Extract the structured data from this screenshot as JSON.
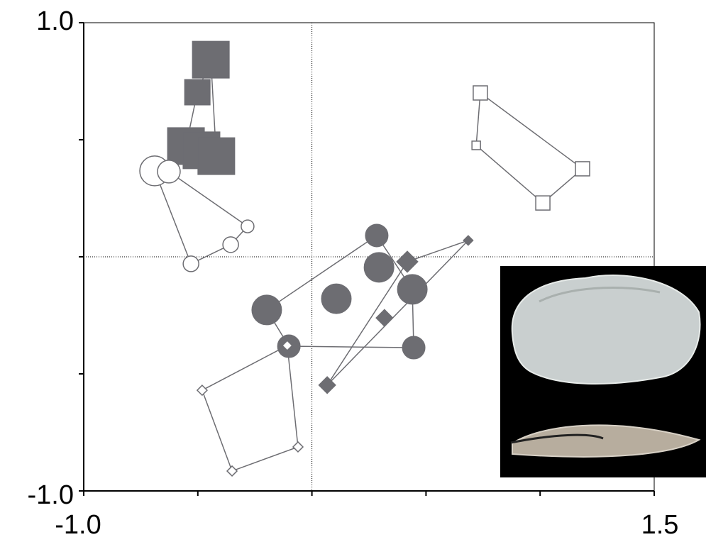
{
  "chart_data": {
    "type": "scatter",
    "xlim": [
      -1.0,
      1.5
    ],
    "ylim": [
      -1.0,
      1.0
    ],
    "xticks": [
      {
        "value": -1.0,
        "label": "-1.0"
      },
      {
        "value": 1.5,
        "label": "1.5"
      }
    ],
    "yticks": [
      {
        "value": -1.0,
        "label": "-1.0"
      },
      {
        "value": 1.0,
        "label": "1.0"
      }
    ],
    "xminorticks": [
      -0.5,
      0,
      0.5,
      1.0
    ],
    "yminorticks": [
      -0.5,
      0,
      0.5
    ],
    "reference_lines": {
      "x": 0,
      "y": 0
    },
    "hulls": true,
    "series": [
      {
        "color": "#6d6d72",
        "marker": "square",
        "filled": true,
        "x": [
          -0.443,
          -0.502,
          -0.552,
          -0.484,
          -0.419
        ],
        "values": [
          0.842,
          0.703,
          0.473,
          0.455,
          0.43
        ],
        "sizes": [
          4,
          3,
          4,
          4,
          4
        ]
      },
      {
        "color": "#6d6d72",
        "marker": "circle",
        "filled": false,
        "x": [
          -0.689,
          -0.627,
          -0.282,
          -0.356,
          -0.53
        ],
        "values": [
          0.367,
          0.364,
          0.13,
          0.052,
          -0.03
        ],
        "sizes": [
          4,
          3,
          1,
          2,
          2
        ]
      },
      {
        "color": "#6d6d72",
        "marker": "square",
        "filled": false,
        "x": [
          0.738,
          0.72,
          1.186,
          1.012
        ],
        "values": [
          0.7,
          0.476,
          0.376,
          0.23
        ],
        "sizes": [
          2,
          1,
          2,
          2
        ]
      },
      {
        "color": "#6d6d72",
        "marker": "circle",
        "filled": true,
        "x": [
          0.284,
          0.294,
          0.44,
          0.107,
          -0.198,
          -0.101,
          0.446
        ],
        "values": [
          0.091,
          -0.045,
          -0.139,
          -0.179,
          -0.227,
          -0.382,
          -0.388
        ],
        "sizes": [
          3,
          4,
          4,
          4,
          4,
          3,
          3
        ]
      },
      {
        "color": "#6d6d72",
        "marker": "diamond",
        "filled": true,
        "x": [
          0.685,
          0.418,
          0.318,
          0.067
        ],
        "values": [
          0.07,
          -0.021,
          -0.261,
          -0.548
        ],
        "sizes": [
          1,
          3,
          2,
          2
        ]
      },
      {
        "color": "#6d6d72",
        "marker": "diamond",
        "filled": false,
        "x": [
          -0.481,
          -0.108,
          -0.061,
          -0.35
        ],
        "values": [
          -0.57,
          -0.379,
          -0.812,
          -0.915
        ],
        "sizes": [
          1,
          1,
          1,
          1
        ]
      }
    ]
  }
}
